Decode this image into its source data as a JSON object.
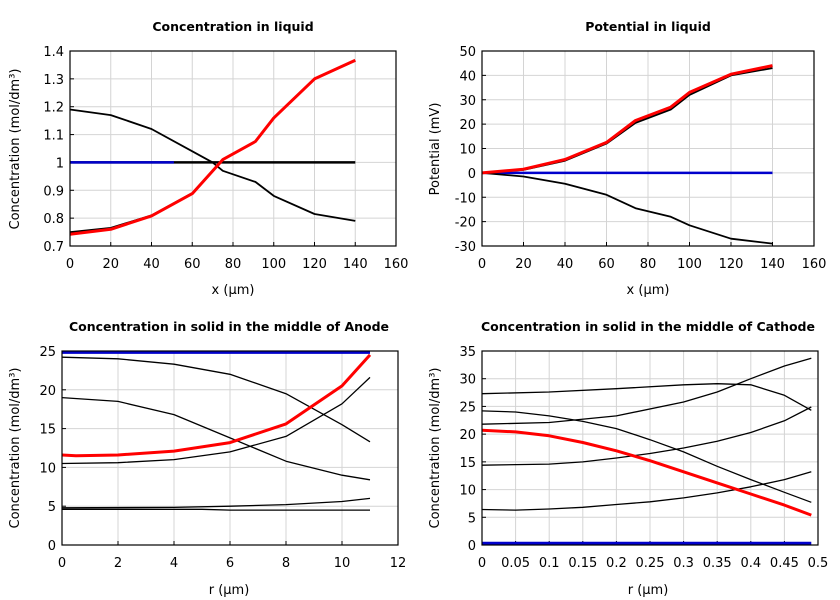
{
  "chart_data": [
    {
      "type": "line",
      "title": "Concentration in liquid",
      "xlabel": "x (µm)",
      "ylabel": "Concentration (mol/dm³)",
      "xlim": [
        0,
        160
      ],
      "ylim": [
        0.7,
        1.4
      ],
      "xticks": [
        0,
        20,
        40,
        60,
        80,
        100,
        120,
        140,
        160
      ],
      "yticks": [
        0.7,
        0.8,
        0.9,
        1,
        1.1,
        1.2,
        1.3,
        1.4
      ],
      "grid": true,
      "series": [
        {
          "color": "#000000",
          "width": 2.5,
          "x": [
            0,
            140
          ],
          "y": [
            1,
            1
          ]
        },
        {
          "color": "#0000cc",
          "width": 2.5,
          "x": [
            0,
            51
          ],
          "y": [
            1,
            1
          ]
        },
        {
          "color": "#000000",
          "width": 1.8,
          "x": [
            0,
            20,
            40,
            60,
            70,
            75,
            91,
            100,
            120,
            140
          ],
          "y": [
            1.19,
            1.17,
            1.12,
            1.04,
            1.0,
            0.97,
            0.93,
            0.88,
            0.815,
            0.79
          ]
        },
        {
          "color": "#000000",
          "width": 1.8,
          "x": [
            0,
            20,
            40,
            60,
            75,
            91,
            100,
            120,
            140
          ],
          "y": [
            0.75,
            0.765,
            0.81,
            0.89,
            1.01,
            1.075,
            1.16,
            1.3,
            1.365
          ]
        },
        {
          "color": "#ff0000",
          "width": 3,
          "x": [
            0,
            20,
            40,
            60,
            75,
            91,
            100,
            120,
            140
          ],
          "y": [
            0.742,
            0.76,
            0.808,
            0.888,
            1.01,
            1.075,
            1.16,
            1.3,
            1.367
          ]
        }
      ]
    },
    {
      "type": "line",
      "title": "Potential in liquid",
      "xlabel": "x (µm)",
      "ylabel": "Potential (mV)",
      "xlim": [
        0,
        160
      ],
      "ylim": [
        -30,
        50
      ],
      "xticks": [
        0,
        20,
        40,
        60,
        80,
        100,
        120,
        140,
        160
      ],
      "yticks": [
        -30,
        -20,
        -10,
        0,
        10,
        20,
        30,
        40,
        50
      ],
      "grid": true,
      "series": [
        {
          "color": "#0000cc",
          "width": 2.5,
          "x": [
            0,
            140
          ],
          "y": [
            0,
            0
          ]
        },
        {
          "color": "#000000",
          "width": 1.8,
          "x": [
            0,
            20,
            40,
            60,
            74,
            91,
            100,
            120,
            140
          ],
          "y": [
            0,
            -1.5,
            -4.5,
            -9,
            -14.5,
            -18,
            -21.5,
            -27,
            -29
          ]
        },
        {
          "color": "#000000",
          "width": 1.8,
          "x": [
            0,
            20,
            40,
            60,
            74,
            91,
            100,
            120,
            140
          ],
          "y": [
            0,
            1.2,
            5,
            12,
            20.5,
            26,
            32,
            40,
            43
          ]
        },
        {
          "color": "#ff0000",
          "width": 3,
          "x": [
            0,
            20,
            40,
            60,
            74,
            91,
            100,
            120,
            140
          ],
          "y": [
            0,
            1.5,
            5.5,
            12.5,
            21.5,
            27,
            33,
            40.5,
            44
          ]
        }
      ]
    },
    {
      "type": "line",
      "title": "Concentration in solid in the middle of Anode",
      "xlabel": "r (µm)",
      "ylabel": "Concentration (mol/dm³)",
      "xlim": [
        0,
        12
      ],
      "ylim": [
        0,
        25
      ],
      "xticks": [
        0,
        2,
        4,
        6,
        8,
        10,
        12
      ],
      "yticks": [
        0,
        5,
        10,
        15,
        20,
        25
      ],
      "grid": true,
      "series": [
        {
          "color": "#0000cc",
          "width": 2.5,
          "x": [
            0,
            11
          ],
          "y": [
            24.8,
            24.8
          ]
        },
        {
          "color": "#000000",
          "width": 1.3,
          "x": [
            0,
            2,
            4,
            6,
            8,
            10,
            11
          ],
          "y": [
            24.2,
            24.0,
            23.3,
            22.0,
            19.5,
            15.5,
            13.3
          ]
        },
        {
          "color": "#000000",
          "width": 1.3,
          "x": [
            0,
            2,
            4,
            6,
            8,
            10,
            11
          ],
          "y": [
            19.0,
            18.5,
            16.8,
            13.8,
            10.8,
            9.0,
            8.4
          ]
        },
        {
          "color": "#000000",
          "width": 1.3,
          "x": [
            0,
            2,
            4,
            6,
            8,
            10,
            11
          ],
          "y": [
            10.5,
            10.6,
            11.0,
            12.0,
            14.0,
            18.2,
            21.6
          ]
        },
        {
          "color": "#000000",
          "width": 1.3,
          "x": [
            0,
            4,
            6,
            8,
            10,
            11
          ],
          "y": [
            4.8,
            4.85,
            5.0,
            5.2,
            5.6,
            6.0
          ]
        },
        {
          "color": "#000000",
          "width": 1.3,
          "x": [
            0,
            5,
            6,
            11
          ],
          "y": [
            4.6,
            4.6,
            4.5,
            4.5
          ]
        },
        {
          "color": "#ff0000",
          "width": 3,
          "x": [
            0,
            0.5,
            2,
            4,
            6,
            8,
            10,
            11
          ],
          "y": [
            11.6,
            11.5,
            11.6,
            12.1,
            13.2,
            15.6,
            20.5,
            24.5
          ]
        }
      ]
    },
    {
      "type": "line",
      "title": "Concentration in solid in the middle of Cathode",
      "xlabel": "r (µm)",
      "ylabel": "Concentration (mol/dm³)",
      "xlim": [
        0,
        0.5
      ],
      "ylim": [
        0,
        35
      ],
      "xticks": [
        0,
        0.05,
        0.1,
        0.15,
        0.2,
        0.25,
        0.3,
        0.35,
        0.4,
        0.45,
        0.5
      ],
      "yticks": [
        0,
        5,
        10,
        15,
        20,
        25,
        30,
        35
      ],
      "grid": true,
      "series": [
        {
          "color": "#0000cc",
          "width": 3,
          "x": [
            0,
            0.49
          ],
          "y": [
            0.3,
            0.3
          ]
        },
        {
          "color": "#000000",
          "width": 1.3,
          "x": [
            0,
            0.1,
            0.2,
            0.3,
            0.35,
            0.4,
            0.45,
            0.49
          ],
          "y": [
            27.3,
            27.6,
            28.2,
            28.9,
            29.1,
            28.9,
            27.0,
            24.3
          ]
        },
        {
          "color": "#000000",
          "width": 1.3,
          "x": [
            0,
            0.1,
            0.2,
            0.3,
            0.35,
            0.4,
            0.45,
            0.49
          ],
          "y": [
            21.8,
            22.1,
            23.3,
            25.8,
            27.6,
            30.0,
            32.3,
            33.7
          ]
        },
        {
          "color": "#000000",
          "width": 1.3,
          "x": [
            0,
            0.05,
            0.1,
            0.15,
            0.2,
            0.25,
            0.3,
            0.35,
            0.4,
            0.45,
            0.49
          ],
          "y": [
            24.2,
            24.0,
            23.3,
            22.3,
            21.0,
            19.0,
            16.8,
            14.2,
            11.8,
            9.5,
            7.7
          ]
        },
        {
          "color": "#000000",
          "width": 1.3,
          "x": [
            0,
            0.1,
            0.15,
            0.2,
            0.25,
            0.3,
            0.35,
            0.4,
            0.45,
            0.49
          ],
          "y": [
            14.4,
            14.6,
            15.0,
            15.7,
            16.5,
            17.5,
            18.7,
            20.3,
            22.4,
            24.9
          ]
        },
        {
          "color": "#000000",
          "width": 1.3,
          "x": [
            0,
            0.05,
            0.1,
            0.15,
            0.2,
            0.25,
            0.3,
            0.35,
            0.4,
            0.45,
            0.49
          ],
          "y": [
            6.4,
            6.3,
            6.5,
            6.8,
            7.3,
            7.8,
            8.5,
            9.4,
            10.5,
            11.8,
            13.2
          ]
        },
        {
          "color": "#ff0000",
          "width": 3,
          "x": [
            0,
            0.05,
            0.1,
            0.15,
            0.2,
            0.25,
            0.3,
            0.35,
            0.4,
            0.45,
            0.49
          ],
          "y": [
            20.7,
            20.4,
            19.7,
            18.5,
            17.0,
            15.2,
            13.2,
            11.2,
            9.2,
            7.2,
            5.4
          ]
        }
      ]
    }
  ]
}
